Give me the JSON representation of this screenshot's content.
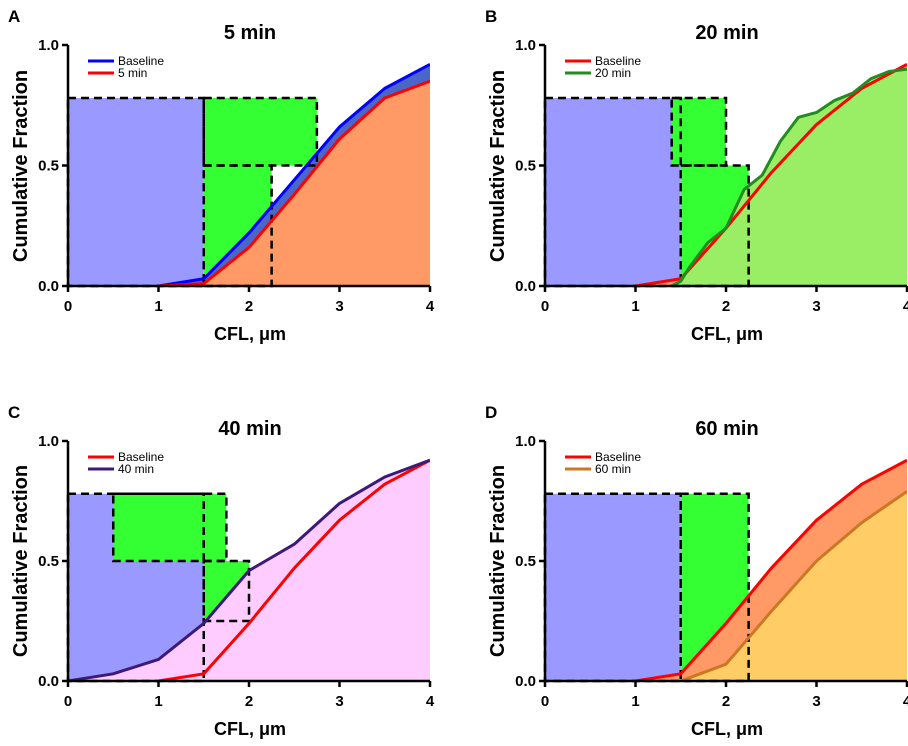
{
  "chart_data": [
    {
      "type": "area",
      "panel_label": "A",
      "title": "5 min",
      "xlabel": "CFL, μm",
      "ylabel": "Cumulative Fraction",
      "xlim": [
        0,
        4
      ],
      "ylim": [
        0,
        1.0
      ],
      "x_ticks": [
        "0",
        "1",
        "2",
        "3",
        "4"
      ],
      "y_ticks": [
        "0.0",
        "0.5",
        "1.0"
      ],
      "legend_position": "top-left",
      "series": [
        {
          "name": "Baseline",
          "color": "#0000ff",
          "fill": "#4a66c9",
          "points": [
            [
              1,
              0
            ],
            [
              1.5,
              0.03
            ],
            [
              2,
              0.22
            ],
            [
              2.5,
              0.44
            ],
            [
              3,
              0.66
            ],
            [
              3.5,
              0.82
            ],
            [
              4,
              0.92
            ]
          ]
        },
        {
          "name": "5 min",
          "color": "#ff0000",
          "fill": "#ff9966",
          "points": [
            [
              1,
              0
            ],
            [
              1.5,
              0.01
            ],
            [
              2,
              0.16
            ],
            [
              2.5,
              0.38
            ],
            [
              3,
              0.61
            ],
            [
              3.5,
              0.78
            ],
            [
              4,
              0.85
            ]
          ]
        }
      ],
      "boxes": [
        {
          "x0": 0,
          "x1": 1.5,
          "y0": 0,
          "y1": 0.78,
          "fill": "#9999ff"
        },
        {
          "x0": 1.5,
          "x1": 2.75,
          "y0": 0.5,
          "y1": 0.78,
          "fill": "#33ff33"
        },
        {
          "x0": 1.5,
          "x1": 2.25,
          "y0": 0,
          "y1": 0.5,
          "fill": "#33ff33"
        }
      ]
    },
    {
      "type": "area",
      "panel_label": "B",
      "title": "20 min",
      "xlabel": "CFL, μm",
      "ylabel": "Cumulative Fraction",
      "xlim": [
        0,
        4
      ],
      "ylim": [
        0,
        1.0
      ],
      "x_ticks": [
        "0",
        "1",
        "2",
        "3",
        "4"
      ],
      "y_ticks": [
        "0.0",
        "0.5",
        "1.0"
      ],
      "legend_position": "top-left",
      "series": [
        {
          "name": "Baseline",
          "color": "#ff0000",
          "fill": "#ff9966",
          "points": [
            [
              1,
              0
            ],
            [
              1.5,
              0.03
            ],
            [
              2,
              0.24
            ],
            [
              2.5,
              0.47
            ],
            [
              3,
              0.67
            ],
            [
              3.5,
              0.82
            ],
            [
              4,
              0.92
            ]
          ]
        },
        {
          "name": "20 min",
          "color": "#228b22",
          "fill": "#99ee66",
          "points": [
            [
              1.4,
              0
            ],
            [
              1.5,
              0.02
            ],
            [
              1.6,
              0.08
            ],
            [
              1.8,
              0.18
            ],
            [
              2,
              0.24
            ],
            [
              2.2,
              0.4
            ],
            [
              2.4,
              0.46
            ],
            [
              2.6,
              0.6
            ],
            [
              2.8,
              0.7
            ],
            [
              3,
              0.72
            ],
            [
              3.2,
              0.77
            ],
            [
              3.4,
              0.8
            ],
            [
              3.6,
              0.86
            ],
            [
              3.8,
              0.89
            ],
            [
              4,
              0.9
            ]
          ]
        }
      ],
      "boxes": [
        {
          "x0": 0,
          "x1": 1.5,
          "y0": 0,
          "y1": 0.78,
          "fill": "#9999ff"
        },
        {
          "x0": 1.4,
          "x1": 2.0,
          "y0": 0.5,
          "y1": 0.78,
          "fill": "#33ff33"
        },
        {
          "x0": 1.5,
          "x1": 2.25,
          "y0": 0,
          "y1": 0.5,
          "fill": "#33ff33"
        }
      ]
    },
    {
      "type": "area",
      "panel_label": "C",
      "title": "40 min",
      "xlabel": "CFL, μm",
      "ylabel": "Cumulative Fraction",
      "xlim": [
        0,
        4
      ],
      "ylim": [
        0,
        1.0
      ],
      "x_ticks": [
        "0",
        "1",
        "2",
        "3",
        "4"
      ],
      "y_ticks": [
        "0.0",
        "0.5",
        "1.0"
      ],
      "legend_position": "top-left",
      "series": [
        {
          "name": "Baseline",
          "color": "#ff0000",
          "fill": "#ff9966",
          "points": [
            [
              1,
              0
            ],
            [
              1.5,
              0.03
            ],
            [
              2,
              0.24
            ],
            [
              2.5,
              0.47
            ],
            [
              3,
              0.67
            ],
            [
              3.5,
              0.82
            ],
            [
              4,
              0.92
            ]
          ]
        },
        {
          "name": "40 min",
          "color": "#3d1a78",
          "fill": "#ffccff",
          "points": [
            [
              0,
              0
            ],
            [
              0.5,
              0.03
            ],
            [
              1,
              0.09
            ],
            [
              1.5,
              0.24
            ],
            [
              2,
              0.46
            ],
            [
              2.5,
              0.57
            ],
            [
              3,
              0.74
            ],
            [
              3.5,
              0.85
            ],
            [
              4,
              0.92
            ]
          ]
        }
      ],
      "boxes": [
        {
          "x0": 0,
          "x1": 1.5,
          "y0": 0,
          "y1": 0.78,
          "fill": "#9999ff"
        },
        {
          "x0": 0.5,
          "x1": 1.75,
          "y0": 0.5,
          "y1": 0.78,
          "fill": "#33ff33"
        },
        {
          "x0": 1.5,
          "x1": 2.0,
          "y0": 0.25,
          "y1": 0.5,
          "fill": "#33ff33"
        }
      ]
    },
    {
      "type": "area",
      "panel_label": "D",
      "title": "60 min",
      "xlabel": "CFL, μm",
      "ylabel": "Cumulative Fraction",
      "xlim": [
        0,
        4
      ],
      "ylim": [
        0,
        1.0
      ],
      "x_ticks": [
        "0",
        "1",
        "2",
        "3",
        "4"
      ],
      "y_ticks": [
        "0.0",
        "0.5",
        "1.0"
      ],
      "legend_position": "top-left",
      "series": [
        {
          "name": "Baseline",
          "color": "#ff0000",
          "fill": "#ff9966",
          "points": [
            [
              1,
              0
            ],
            [
              1.5,
              0.03
            ],
            [
              2,
              0.24
            ],
            [
              2.5,
              0.47
            ],
            [
              3,
              0.67
            ],
            [
              3.5,
              0.82
            ],
            [
              4,
              0.92
            ]
          ]
        },
        {
          "name": "60 min",
          "color": "#cc7722",
          "fill": "#ffcc66",
          "points": [
            [
              1.5,
              0
            ],
            [
              2,
              0.07
            ],
            [
              2.5,
              0.29
            ],
            [
              3,
              0.5
            ],
            [
              3.5,
              0.66
            ],
            [
              4,
              0.79
            ]
          ]
        }
      ],
      "boxes": [
        {
          "x0": 0,
          "x1": 1.5,
          "y0": 0,
          "y1": 0.78,
          "fill": "#9999ff"
        },
        {
          "x0": 1.5,
          "x1": 2.25,
          "y0": 0,
          "y1": 0.78,
          "fill": "#33ff33"
        }
      ]
    }
  ]
}
